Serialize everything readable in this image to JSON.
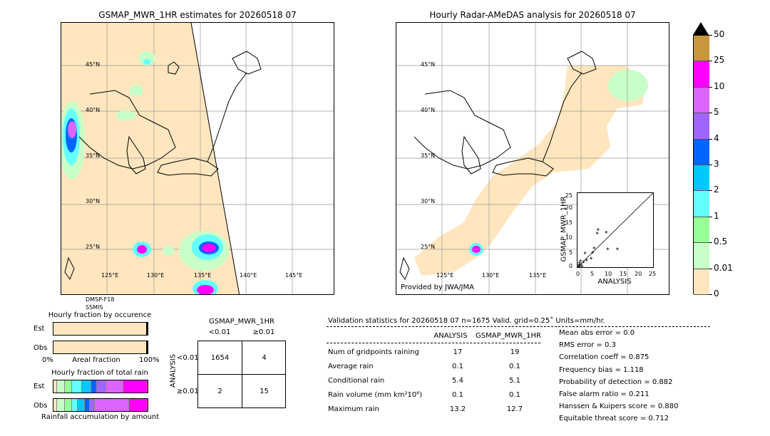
{
  "left_map": {
    "title": "GSMAP_MWR_1HR estimates for 20260518 07",
    "lat_labels": [
      "45°N",
      "40°N",
      "35°N",
      "30°N",
      "25°N"
    ],
    "lon_labels": [
      "125°E",
      "130°E",
      "135°E",
      "140°E",
      "145°E"
    ],
    "satellite_labels": [
      "DMSP-F18",
      "SSMIS"
    ]
  },
  "right_map": {
    "title": "Hourly Radar-AMeDAS analysis for 20260518 07",
    "lat_labels": [
      "45°N",
      "40°N",
      "35°N",
      "30°N",
      "25°N"
    ],
    "lon_labels": [
      "125°E",
      "130°E",
      "135°E"
    ],
    "credit": "Provided by JWA/JMA"
  },
  "colorbar": {
    "labels": [
      "50",
      "25",
      "10",
      "5",
      "4",
      "3",
      "2",
      "1",
      "0.5",
      "0.01",
      "0"
    ],
    "colors": [
      "#c8963c",
      "#ff00ff",
      "#dc64ff",
      "#a064ff",
      "#0064ff",
      "#00c8ff",
      "#64ffff",
      "#96ff96",
      "#c8ffc8",
      "#ffe6be"
    ],
    "over_color": "#000000"
  },
  "scatter": {
    "ylabel": "GSMAP_MWR_1HR",
    "xlabel": "ANALYSIS",
    "ticks": [
      "0",
      "5",
      "10",
      "15",
      "20",
      "25"
    ]
  },
  "chart_data": {
    "type": "scatter",
    "xlabel": "ANALYSIS",
    "ylabel": "GSMAP_MWR_1HR",
    "xlim": [
      0,
      25
    ],
    "ylim": [
      0,
      25
    ],
    "points": [
      [
        0.3,
        0.2
      ],
      [
        0.5,
        0.8
      ],
      [
        0.6,
        1.5
      ],
      [
        0.8,
        0.4
      ],
      [
        1.0,
        2.2
      ],
      [
        1.2,
        1.0
      ],
      [
        1.5,
        0.3
      ],
      [
        2.0,
        1.8
      ],
      [
        2.5,
        4.8
      ],
      [
        3.0,
        2.4
      ],
      [
        4.5,
        3.0
      ],
      [
        5.0,
        5.0
      ],
      [
        5.5,
        6.5
      ],
      [
        6.5,
        11.5
      ],
      [
        6.8,
        12.7
      ],
      [
        9.5,
        11.8
      ],
      [
        10.0,
        6.2
      ],
      [
        13.2,
        6.2
      ]
    ]
  },
  "occurrence": {
    "title": "Hourly fraction by occurence",
    "row_labels": [
      "Est",
      "Obs"
    ],
    "axis_left": "0%",
    "axis_mid": "Areal fraction",
    "axis_right": "100%",
    "est_fill_fraction": 0.983,
    "obs_fill_fraction": 0.986
  },
  "total_rain": {
    "title": "Hourly fraction of total rain",
    "row_labels": [
      "Est",
      "Obs"
    ],
    "footer": "Rainfall accumulation by amount",
    "est_segments": [
      {
        "color": "#ffe6be",
        "fraction": 0.04
      },
      {
        "color": "#c8ffc8",
        "fraction": 0.08
      },
      {
        "color": "#96ff96",
        "fraction": 0.08
      },
      {
        "color": "#64ffff",
        "fraction": 0.1
      },
      {
        "color": "#00c8ff",
        "fraction": 0.1
      },
      {
        "color": "#0064ff",
        "fraction": 0.06
      },
      {
        "color": "#a064ff",
        "fraction": 0.1
      },
      {
        "color": "#dc64ff",
        "fraction": 0.18
      },
      {
        "color": "#ff00ff",
        "fraction": 0.26
      }
    ],
    "obs_segments": [
      {
        "color": "#ffe6be",
        "fraction": 0.04
      },
      {
        "color": "#c8ffc8",
        "fraction": 0.08
      },
      {
        "color": "#96ff96",
        "fraction": 0.08
      },
      {
        "color": "#64ffff",
        "fraction": 0.06
      },
      {
        "color": "#00c8ff",
        "fraction": 0.07
      },
      {
        "color": "#0064ff",
        "fraction": 0.06
      },
      {
        "color": "#a064ff",
        "fraction": 0.05
      },
      {
        "color": "#dc64ff",
        "fraction": 0.36
      },
      {
        "color": "#ff00ff",
        "fraction": 0.2
      }
    ]
  },
  "contingency": {
    "title": "GSMAP_MWR_1HR",
    "col_labels": [
      "<0.01",
      "≥0.01"
    ],
    "row_axis_label": "ANALYSIS",
    "row_labels": [
      "<0.01",
      "≥0.01"
    ],
    "cells": [
      [
        "1654",
        "4"
      ],
      [
        "2",
        "15"
      ]
    ]
  },
  "validation": {
    "header": "Validation statistics for 20260518 07  n=1675 Valid. grid=0.25˚ Units=mm/hr.",
    "col_headers": [
      "ANALYSIS",
      "GSMAP_MWR_1HR"
    ],
    "rows": [
      {
        "label": "Num of gridpoints raining",
        "analysis": "17",
        "est": "19"
      },
      {
        "label": "Average rain",
        "analysis": "0.1",
        "est": "0.1"
      },
      {
        "label": "Conditional rain",
        "analysis": "5.4",
        "est": "5.1"
      },
      {
        "label": "Rain volume (mm km²10⁶)",
        "analysis": "0.1",
        "est": "0.1"
      },
      {
        "label": "Maximum rain",
        "analysis": "13.2",
        "est": "12.7"
      }
    ],
    "scores": [
      "Mean abs error =    0.0",
      "RMS error =    0.3",
      "Correlation coeff =  0.875",
      "Frequency bias =  1.118",
      "Probability of detection =  0.882",
      "False alarm ratio =  0.211",
      "Hanssen & Kuipers score =  0.880",
      "Equitable threat score =  0.712"
    ]
  }
}
